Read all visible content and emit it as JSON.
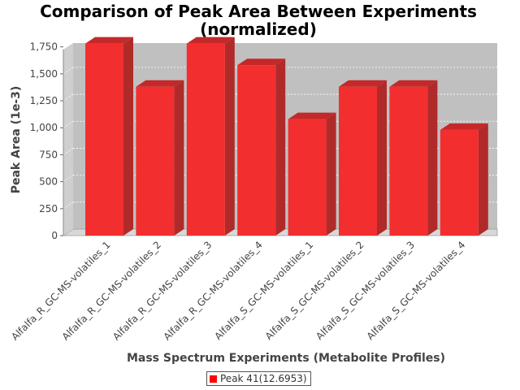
{
  "chart_data": {
    "type": "bar",
    "title": "Comparison of Peak Area Between Experiments",
    "subtitle": "(normalized)",
    "xlabel": "Mass Spectrum Experiments (Metabolite Profiles)",
    "ylabel": "Peak Area (1e-3)",
    "ylim": [
      0,
      1800
    ],
    "yticks": [
      0,
      250,
      500,
      750,
      1000,
      1250,
      1500,
      1750
    ],
    "ytick_labels": [
      "0",
      "250",
      "500",
      "750",
      "1,000",
      "1,250",
      "1,500",
      "1,750"
    ],
    "grid": true,
    "legend_position": "bottom",
    "categories": [
      "Alfalfa_R_GC-MS-volatiles_1",
      "Alfalfa_R_GC-MS-volatiles_2",
      "Alfalfa_R_GC-MS-volatiles_3",
      "Alfalfa_R_GC-MS-volatiles_4",
      "Alfalfa_S_GC-MS-volatiles_1",
      "Alfalfa_S_GC-MS-volatiles_2",
      "Alfalfa_S_GC-MS-volatiles_3",
      "Alfalfa_S_GC-MS-volatiles_4"
    ],
    "series": [
      {
        "name": "Peak 41(12.6953)",
        "color": "#ff0000",
        "values": [
          1780,
          1380,
          1780,
          1580,
          1080,
          1380,
          1380,
          980
        ]
      }
    ]
  },
  "colors": {
    "plot_background": "#c0c0c0",
    "bar_front": "#f32e2e",
    "bar_side": "#b02a2a",
    "bar_top": "#c42828"
  }
}
